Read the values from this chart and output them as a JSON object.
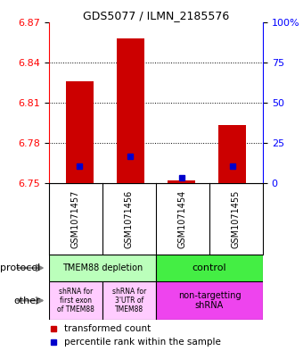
{
  "title": "GDS5077 / ILMN_2185576",
  "samples": [
    "GSM1071457",
    "GSM1071456",
    "GSM1071454",
    "GSM1071455"
  ],
  "ylim": [
    6.75,
    6.87
  ],
  "yticks_left": [
    6.75,
    6.78,
    6.81,
    6.84,
    6.87
  ],
  "yticks_right": [
    0,
    25,
    50,
    75,
    100
  ],
  "yticks_right_labels": [
    "0",
    "25",
    "50",
    "75",
    "100%"
  ],
  "bar_bottoms": [
    6.75,
    6.75,
    6.75,
    6.75
  ],
  "bar_tops": [
    6.826,
    6.858,
    6.752,
    6.793
  ],
  "blue_y": [
    6.763,
    6.77,
    6.754,
    6.763
  ],
  "bar_color": "#cc0000",
  "blue_color": "#0000cc",
  "protocol_labels": [
    "TMEM88 depletion",
    "control"
  ],
  "protocol_color_left": "#bbffbb",
  "protocol_color_right": "#44ee44",
  "other_color_left": "#ffccff",
  "other_color_right": "#ee44ee",
  "other_label1": "shRNA for\nfirst exon\nof TMEM88",
  "other_label2": "shRNA for\n3'UTR of\nTMEM88",
  "other_label3": "non-targetting\nshRNA",
  "legend_red": "transformed count",
  "legend_blue": "percentile rank within the sample",
  "sample_bg": "#cccccc"
}
